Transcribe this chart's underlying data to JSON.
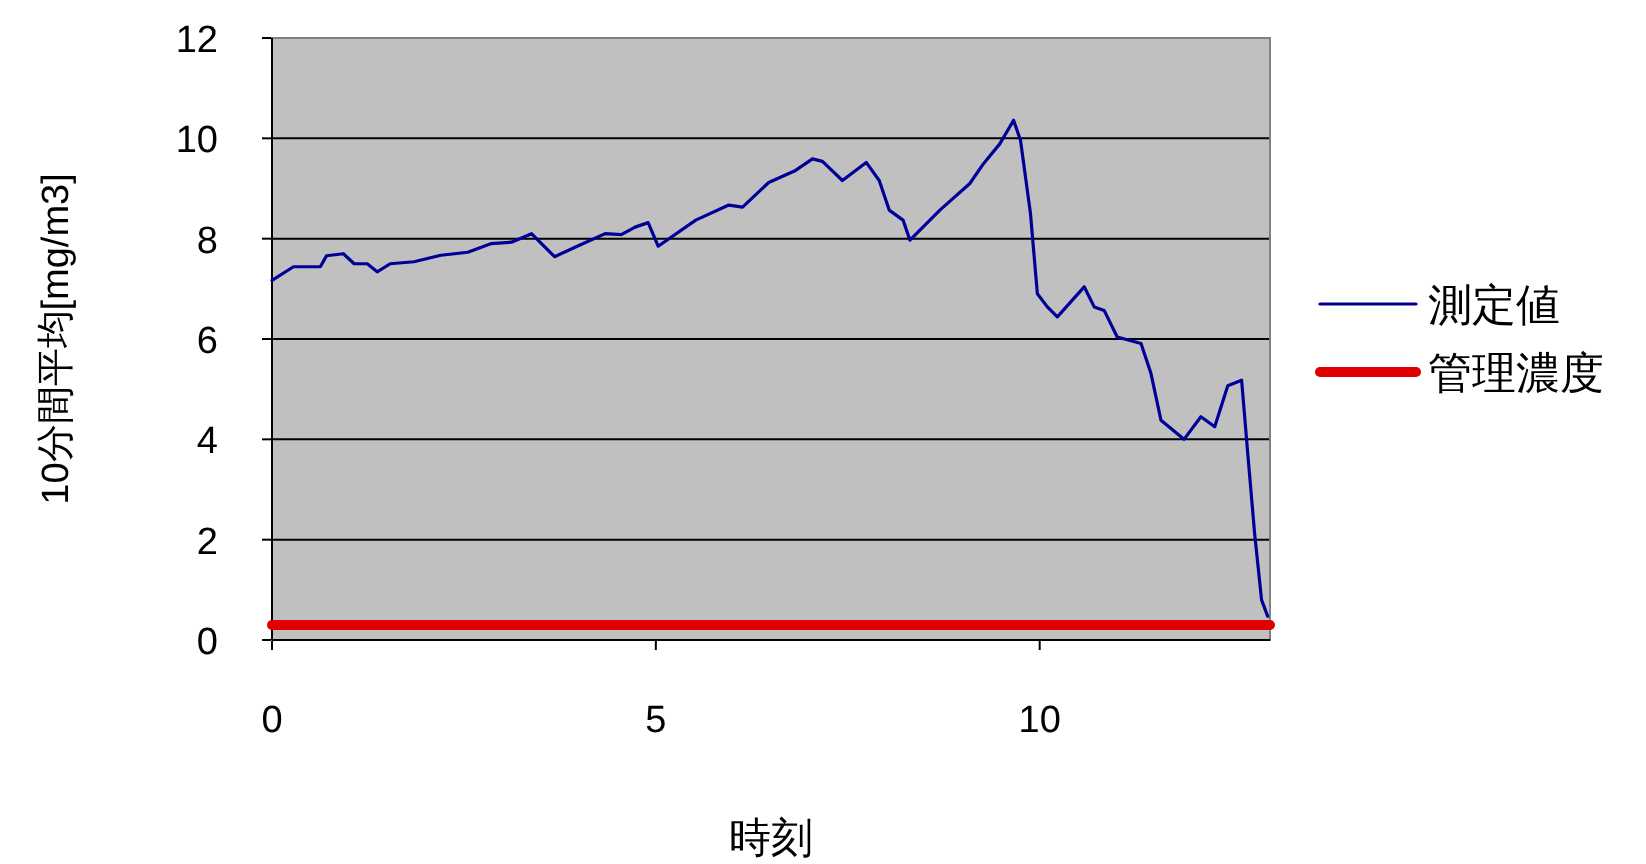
{
  "chart_data": {
    "type": "line",
    "xlabel": "時刻",
    "ylabel": "10分間平均[mg/m3]",
    "xlim": [
      0,
      13
    ],
    "ylim": [
      0,
      12
    ],
    "xticks": [
      0,
      5,
      10
    ],
    "yticks": [
      0,
      2,
      4,
      6,
      8,
      10,
      12
    ],
    "grid": "y",
    "legend": "right",
    "series": [
      {
        "name": "測定値",
        "color": "#000099",
        "x": [
          0,
          0.28,
          0.63,
          0.71,
          0.93,
          1.07,
          1.24,
          1.37,
          1.54,
          1.85,
          2.2,
          2.55,
          2.85,
          3.12,
          3.38,
          3.68,
          3.99,
          4.34,
          4.55,
          4.73,
          4.9,
          5.03,
          5.52,
          5.95,
          6.13,
          6.47,
          6.82,
          7.04,
          7.17,
          7.43,
          7.74,
          7.91,
          8.04,
          8.22,
          8.31,
          8.7,
          9.09,
          9.27,
          9.48,
          9.66,
          9.75,
          9.88,
          9.97,
          10.1,
          10.23,
          10.58,
          10.71,
          10.84,
          11.01,
          11.32,
          11.45,
          11.58,
          11.88,
          12.1,
          12.28,
          12.45,
          12.63,
          12.71,
          12.8,
          12.89,
          12.97
        ],
        "values": [
          7.17,
          7.44,
          7.44,
          7.66,
          7.7,
          7.5,
          7.5,
          7.34,
          7.5,
          7.54,
          7.67,
          7.73,
          7.9,
          7.93,
          8.1,
          7.64,
          7.86,
          8.1,
          8.08,
          8.23,
          8.32,
          7.85,
          8.37,
          8.67,
          8.63,
          9.12,
          9.36,
          9.59,
          9.54,
          9.16,
          9.52,
          9.16,
          8.57,
          8.37,
          7.97,
          8.57,
          9.1,
          9.5,
          9.89,
          10.36,
          9.96,
          8.5,
          6.9,
          6.64,
          6.44,
          7.04,
          6.64,
          6.57,
          6.04,
          5.91,
          5.31,
          4.38,
          4.0,
          4.45,
          4.25,
          5.07,
          5.18,
          3.72,
          2.12,
          0.8,
          0.47
        ]
      },
      {
        "name": "管理濃度",
        "color": "#e00000",
        "x": [
          0,
          13
        ],
        "values": [
          0.3,
          0.3
        ]
      }
    ]
  }
}
